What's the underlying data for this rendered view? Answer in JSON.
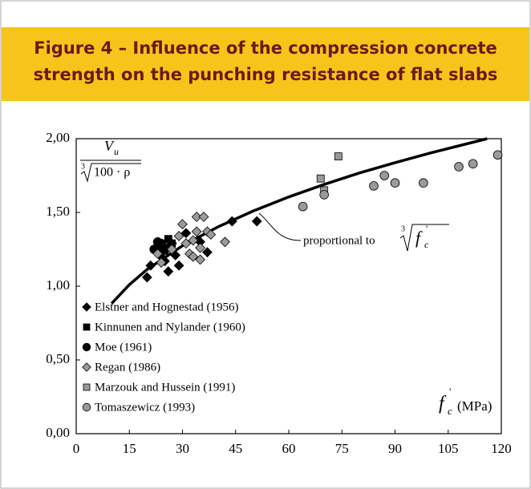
{
  "chart_data": {
    "type": "scatter",
    "title_lines": [
      "Figure 4 – Influence of the compression concrete",
      "strength on the punching resistance of flat slabs"
    ],
    "y_label": {
      "numerator": "V",
      "numerator_sub": "u",
      "root_index": "3",
      "denominator": "100 · ρ"
    },
    "x_label": {
      "symbol": "f",
      "sub": "c",
      "sup": "'",
      "unit": "(MPa)"
    },
    "annotation": {
      "text": "proportional to",
      "root_index": "3",
      "symbol": "f",
      "sub": "c",
      "sup": "'"
    },
    "xlim": [
      0,
      120
    ],
    "xticks": [
      0,
      15,
      30,
      45,
      60,
      75,
      90,
      105,
      120
    ],
    "ylim": [
      0,
      2
    ],
    "yticks": [
      {
        "value": 0,
        "label": "0,00"
      },
      {
        "value": 0.5,
        "label": "0,50"
      },
      {
        "value": 1,
        "label": "1,00"
      },
      {
        "value": 1.5,
        "label": "1,50"
      },
      {
        "value": 2,
        "label": "2,00"
      }
    ],
    "curve": {
      "color": "#000000",
      "x": [
        10,
        15,
        20,
        30,
        40,
        50,
        60,
        70,
        80,
        90,
        100,
        116
      ],
      "values": [
        0.883,
        1.01,
        1.113,
        1.274,
        1.402,
        1.51,
        1.605,
        1.69,
        1.768,
        1.837,
        1.903,
        2.0
      ]
    },
    "series": [
      {
        "name": "Elstner and Hognestad (1956)",
        "marker": "diamond",
        "color": "#000000",
        "x": [
          20,
          21,
          23,
          24,
          25,
          26,
          27,
          28,
          29,
          31,
          35,
          37,
          44,
          51
        ],
        "values": [
          1.06,
          1.14,
          1.24,
          1.2,
          1.17,
          1.1,
          1.29,
          1.21,
          1.14,
          1.36,
          1.3,
          1.23,
          1.44,
          1.44
        ]
      },
      {
        "name": "Kinnunen and Nylander (1960)",
        "marker": "square",
        "color": "#000000",
        "x": [
          24,
          25,
          26,
          27
        ],
        "values": [
          1.27,
          1.24,
          1.32,
          1.29
        ]
      },
      {
        "name": "Moe (1961)",
        "marker": "circle",
        "color": "#000000",
        "x": [
          22,
          23,
          24,
          25
        ],
        "values": [
          1.25,
          1.3,
          1.29,
          1.26
        ]
      },
      {
        "name": "Regan (1986)",
        "marker": "diamond",
        "color": "#9a9a9a",
        "x": [
          23,
          24,
          27,
          29,
          30,
          31,
          32,
          33,
          33,
          34,
          34,
          35,
          35,
          36,
          37,
          38,
          42
        ],
        "values": [
          1.22,
          1.16,
          1.25,
          1.34,
          1.42,
          1.29,
          1.22,
          1.2,
          1.31,
          1.37,
          1.47,
          1.26,
          1.18,
          1.47,
          1.37,
          1.35,
          1.3
        ]
      },
      {
        "name": "Marzouk and Hussein (1991)",
        "marker": "square",
        "color": "#9a9a9a",
        "x": [
          69,
          70,
          74
        ],
        "values": [
          1.73,
          1.65,
          1.88
        ]
      },
      {
        "name": "Tomaszewicz (1993)",
        "marker": "circle",
        "color": "#9a9a9a",
        "x": [
          64,
          70,
          84,
          87,
          90,
          98,
          108,
          112,
          119
        ],
        "values": [
          1.54,
          1.62,
          1.68,
          1.75,
          1.7,
          1.7,
          1.81,
          1.83,
          1.89
        ]
      }
    ]
  }
}
